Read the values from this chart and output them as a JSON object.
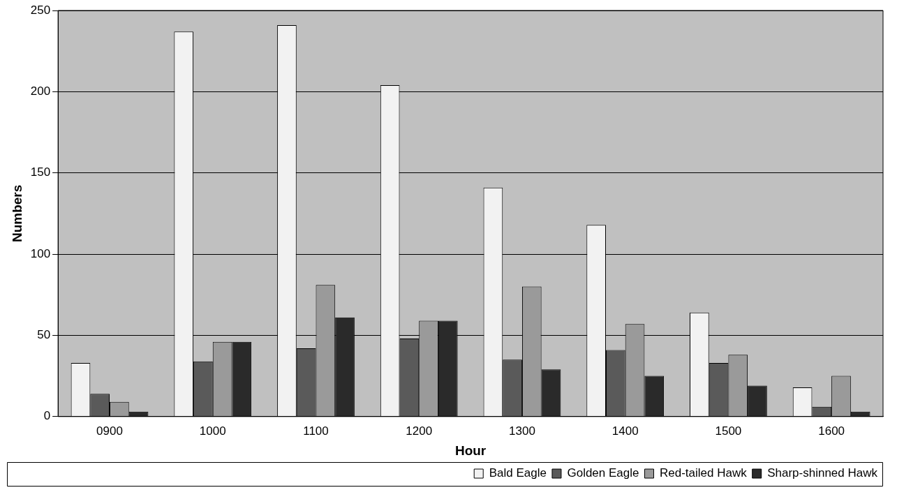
{
  "chart_data": {
    "type": "bar",
    "xlabel": "Hour",
    "ylabel": "Numbers",
    "categories": [
      "0900",
      "1000",
      "1100",
      "1200",
      "1300",
      "1400",
      "1500",
      "1600"
    ],
    "series": [
      {
        "name": "Bald Eagle",
        "color": "#f2f2f2",
        "values": [
          33,
          237,
          241,
          204,
          141,
          118,
          64,
          18
        ]
      },
      {
        "name": "Golden Eagle",
        "color": "#5a5a5a",
        "values": [
          14,
          34,
          42,
          48,
          35,
          41,
          33,
          6
        ]
      },
      {
        "name": "Red-tailed Hawk",
        "color": "#9a9a9a",
        "values": [
          9,
          46,
          81,
          59,
          80,
          57,
          38,
          25
        ]
      },
      {
        "name": "Sharp-shinned Hawk",
        "color": "#2a2a2a",
        "values": [
          3,
          46,
          61,
          59,
          29,
          25,
          19,
          3
        ]
      }
    ],
    "ylim": [
      0,
      250
    ],
    "yticks": [
      0,
      50,
      100,
      150,
      200,
      250
    ],
    "grid": "y",
    "legend": "bottom"
  }
}
